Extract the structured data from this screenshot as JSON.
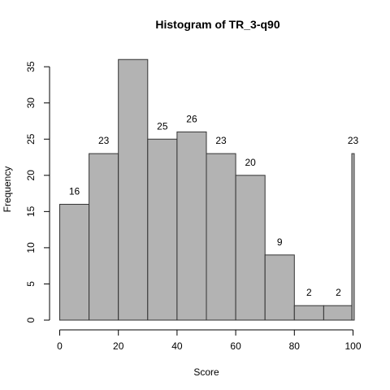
{
  "chart_data": {
    "type": "bar",
    "title": "Histogram of TR_3-q90",
    "xlabel": "Score",
    "ylabel": "Frequency",
    "xlim": [
      0,
      100
    ],
    "ylim": [
      0,
      36
    ],
    "x_ticks": [
      0,
      20,
      40,
      60,
      80,
      100
    ],
    "y_ticks": [
      0,
      5,
      10,
      15,
      20,
      25,
      30,
      35
    ],
    "bins": [
      {
        "from": 0,
        "to": 10,
        "value": 16,
        "label": "16"
      },
      {
        "from": 10,
        "to": 20,
        "value": 23,
        "label": "23"
      },
      {
        "from": 20,
        "to": 30,
        "value": 36,
        "label": ""
      },
      {
        "from": 30,
        "to": 40,
        "value": 25,
        "label": "25"
      },
      {
        "from": 40,
        "to": 50,
        "value": 26,
        "label": "26"
      },
      {
        "from": 50,
        "to": 60,
        "value": 23,
        "label": "23"
      },
      {
        "from": 60,
        "to": 70,
        "value": 20,
        "label": "20"
      },
      {
        "from": 70,
        "to": 80,
        "value": 9,
        "label": "9"
      },
      {
        "from": 80,
        "to": 90,
        "value": 2,
        "label": "2"
      },
      {
        "from": 90,
        "to": 100,
        "value": 2,
        "label": "2"
      },
      {
        "from": 100,
        "to": 100,
        "value": 23,
        "label": "23"
      }
    ],
    "bar_color": "#b3b3b3",
    "edge_color": "#333333",
    "grid": false
  }
}
